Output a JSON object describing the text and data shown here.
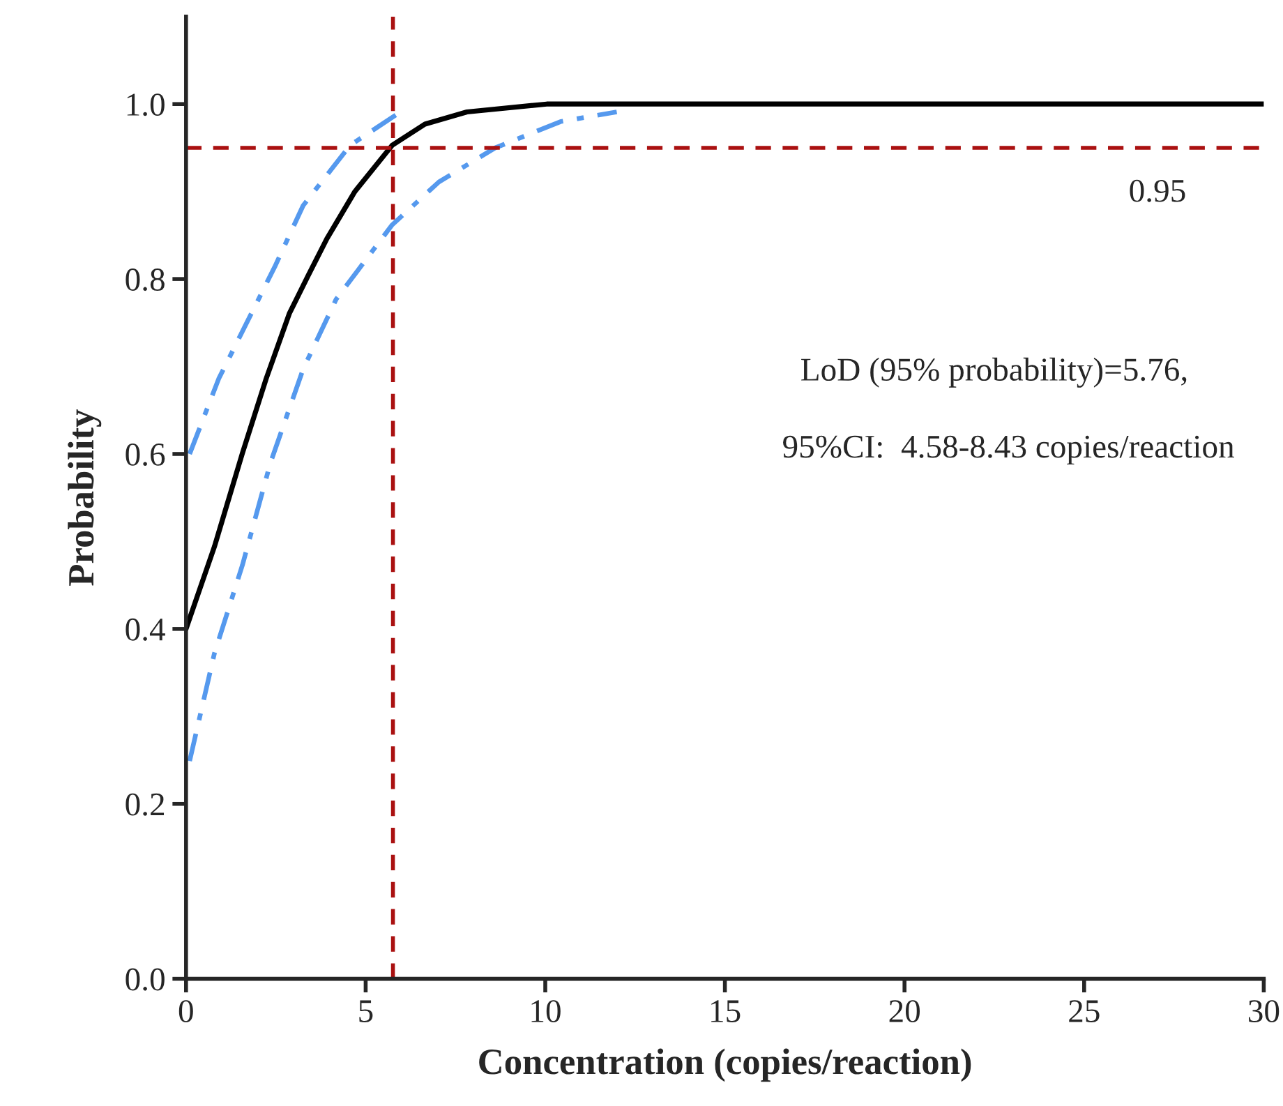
{
  "chart_data": {
    "type": "line",
    "xlabel": "Concentration (copies/reaction)",
    "ylabel": "Probability",
    "xlim": [
      0,
      30
    ],
    "xticks": [
      0,
      5,
      10,
      15,
      20,
      25,
      30
    ],
    "ylim": [
      0,
      1.1
    ],
    "yticks": [
      {
        "value": 0,
        "label": "0.0"
      },
      0.2,
      0.4,
      0.6,
      0.8,
      {
        "value": 1,
        "label": "1.0"
      }
    ],
    "grid": false,
    "marker": "none",
    "series": [
      {
        "color": "#000000",
        "line_style": "solid",
        "x": [
          0,
          0.79,
          1.57,
          2.23,
          2.88,
          3.4,
          3.92,
          4.7,
          5.74,
          6.65,
          7.82,
          10.04,
          30
        ],
        "values": [
          0.4,
          0.494,
          0.601,
          0.686,
          0.761,
          0.804,
          0.846,
          0.9,
          0.953,
          0.977,
          0.991,
          1.0,
          1.0
        ]
      },
      {
        "color": "#5599ee",
        "line_style": "dashdot",
        "x": [
          0.1,
          0.91,
          1.69,
          2.47,
          3.26,
          4.57,
          5.86
        ],
        "values": [
          0.6,
          0.686,
          0.75,
          0.814,
          0.884,
          0.953,
          0.988
        ]
      },
      {
        "color": "#5599ee",
        "line_style": "dashdot",
        "x": [
          0.1,
          0.79,
          1.57,
          2.35,
          3.26,
          4.18,
          5.74,
          7.04,
          8.61,
          10.43,
          11.99
        ],
        "values": [
          0.249,
          0.372,
          0.473,
          0.59,
          0.697,
          0.777,
          0.862,
          0.911,
          0.95,
          0.98,
          0.991
        ]
      }
    ],
    "ref_lines": [
      {
        "axis": "y",
        "value": 0.95,
        "label": "0.95",
        "color": "#aa1111",
        "line_style": "dashed"
      },
      {
        "axis": "x",
        "value": 5.76,
        "color": "#aa1111",
        "line_style": "dashed"
      }
    ],
    "annotations": [
      "LoD (95% probability)=5.76,",
      "95%CI:  4.58-8.43 copies/reaction"
    ]
  }
}
